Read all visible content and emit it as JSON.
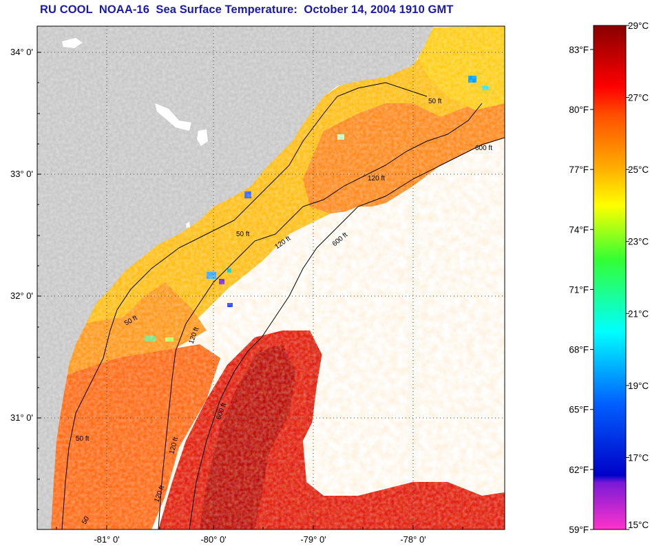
{
  "title": "RU COOL  NOAA-16  Sea Surface Temperature:  October 14, 2004 1910 GMT",
  "map": {
    "lon_ticks": [
      "-81° 0'",
      "-80° 0'",
      "-79° 0'",
      "-78° 0'"
    ],
    "lat_ticks": [
      "34° 0'",
      "33° 0'",
      "32° 0'",
      "31° 0'"
    ],
    "isobath_labels": [
      {
        "text": "50 ft",
        "id": "a"
      },
      {
        "text": "120 ft",
        "id": "b"
      },
      {
        "text": "600 ft",
        "id": "c"
      },
      {
        "text": "50 ft",
        "id": "d"
      },
      {
        "text": "120 ft",
        "id": "e"
      },
      {
        "text": "600 ft",
        "id": "f"
      },
      {
        "text": "50 ft",
        "id": "g"
      },
      {
        "text": "120 ft",
        "id": "h"
      },
      {
        "text": "600 ft",
        "id": "i"
      },
      {
        "text": "50 ft",
        "id": "j"
      },
      {
        "text": "120 ft",
        "id": "k"
      },
      {
        "text": "120 ft",
        "id": "l"
      },
      {
        "text": "50",
        "id": "m"
      }
    ],
    "colors": {
      "land": "#c8c8c8",
      "no_data": "#ffffff",
      "frame": "#000000",
      "grid": "#555555"
    }
  },
  "colorbar": {
    "celsius_labels": [
      "29°C",
      "27°C",
      "25°C",
      "23°C",
      "21°C",
      "19°C",
      "17°C",
      "15°C"
    ],
    "fahrenheit_labels": [
      "83°F",
      "80°F",
      "77°F",
      "74°F",
      "71°F",
      "68°F",
      "65°F",
      "62°F",
      "59°F"
    ],
    "stops": [
      {
        "c": 15,
        "color": "#ff33cc"
      },
      {
        "c": 16.3,
        "color": "#7a1ad6"
      },
      {
        "c": 16.5,
        "color": "#0000c8"
      },
      {
        "c": 18.5,
        "color": "#0060ff"
      },
      {
        "c": 20.5,
        "color": "#00ffff"
      },
      {
        "c": 22.5,
        "color": "#33ff33"
      },
      {
        "c": 24,
        "color": "#ffff00"
      },
      {
        "c": 25,
        "color": "#ffb000"
      },
      {
        "c": 26.5,
        "color": "#ff5000"
      },
      {
        "c": 27.3,
        "color": "#ff0000"
      },
      {
        "c": 29,
        "color": "#880000"
      }
    ]
  }
}
